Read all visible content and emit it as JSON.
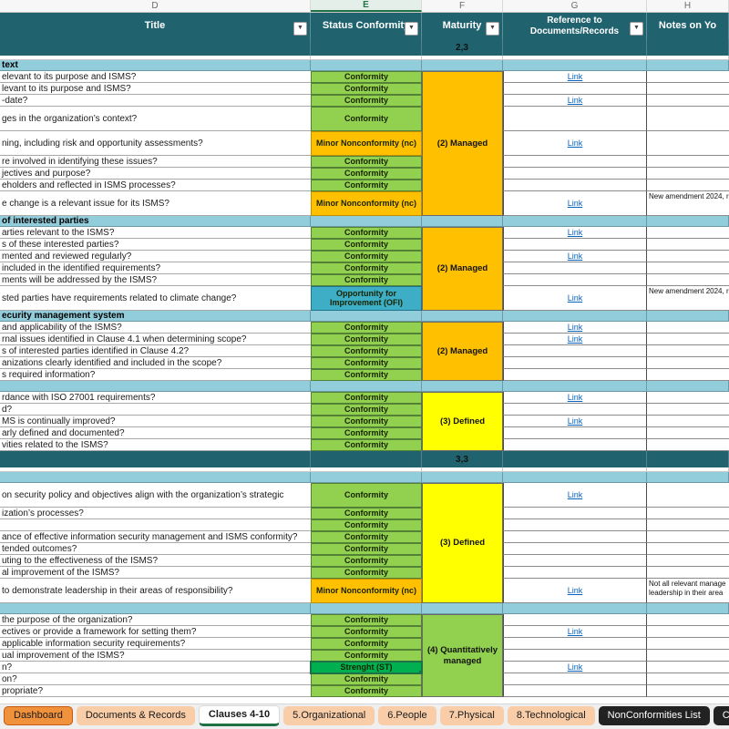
{
  "selected_column": "E",
  "column_letters": [
    "D",
    "E",
    "F",
    "G",
    "H"
  ],
  "headers": {
    "title": "Title",
    "status": "Status Conformity",
    "maturity": "Maturity",
    "reference_line1": "Reference to",
    "reference_line2": "Documents/Records",
    "notes": "Notes on Yo"
  },
  "link_label": "Link",
  "filter_icon": "▼",
  "blocks": [
    {
      "type": "separator",
      "maturity": "2,3"
    },
    {
      "type": "spacer"
    },
    {
      "type": "section",
      "title": "text",
      "maturity": "(2) Managed",
      "maturity_type": "managed",
      "rows": [
        {
          "title": "elevant to its purpose and ISMS?",
          "status": "Conformity",
          "status_type": "conformity",
          "link": true
        },
        {
          "title": "levant to its purpose and ISMS?",
          "status": "Conformity",
          "status_type": "conformity"
        },
        {
          "title": "-date?",
          "status": "Conformity",
          "status_type": "conformity",
          "link": true
        },
        {
          "title": "ges in the organization’s context?",
          "status": "Conformity",
          "status_type": "conformity",
          "tall": true
        },
        {
          "title": "ning, including risk and opportunity assessments?",
          "status": "Minor Nonconformity (nc)",
          "status_type": "minor_nc",
          "tall": true,
          "link": true
        },
        {
          "title": "re involved in identifying these issues?",
          "status": "Conformity",
          "status_type": "conformity"
        },
        {
          "title": "jectives and purpose?",
          "status": "Conformity",
          "status_type": "conformity"
        },
        {
          "title": "eholders and reflected in ISMS processes?",
          "status": "Conformity",
          "status_type": "conformity"
        },
        {
          "title": "e change is a relevant issue for its ISMS?",
          "status": "Minor Nonconformity (nc)",
          "status_type": "minor_nc",
          "tall": true,
          "link": true,
          "note": "New amendment 2024, r"
        }
      ]
    },
    {
      "type": "section",
      "title": "of interested parties",
      "maturity": "(2) Managed",
      "maturity_type": "managed",
      "rows": [
        {
          "title": "arties relevant to the ISMS?",
          "status": "Conformity",
          "status_type": "conformity",
          "link": true
        },
        {
          "title": "s of these interested parties?",
          "status": "Conformity",
          "status_type": "conformity"
        },
        {
          "title": "mented and reviewed regularly?",
          "status": "Conformity",
          "status_type": "conformity",
          "link": true
        },
        {
          "title": "included in the identified requirements?",
          "status": "Conformity",
          "status_type": "conformity"
        },
        {
          "title": "ments will be addressed by the ISMS?",
          "status": "Conformity",
          "status_type": "conformity"
        },
        {
          "title": "sted parties have requirements related to climate change?",
          "status": "Opportunity for Improvement (OFI)",
          "status_type": "ofi",
          "tall": true,
          "link": true,
          "note": "New amendment 2024, r"
        }
      ]
    },
    {
      "type": "section",
      "title": "ecurity management system",
      "maturity": "(2) Managed",
      "maturity_type": "managed",
      "rows": [
        {
          "title": "and applicability of the ISMS?",
          "status": "Conformity",
          "status_type": "conformity",
          "link": true
        },
        {
          "title": "rnal issues identified in Clause 4.1 when determining scope?",
          "status": "Conformity",
          "status_type": "conformity",
          "link": true
        },
        {
          "title": "s of interested parties identified in Clause 4.2?",
          "status": "Conformity",
          "status_type": "conformity"
        },
        {
          "title": "anizations clearly identified and included in the scope?",
          "status": "Conformity",
          "status_type": "conformity"
        },
        {
          "title": "s required information?",
          "status": "Conformity",
          "status_type": "conformity"
        }
      ]
    },
    {
      "type": "section",
      "title": "",
      "maturity": "(3) Defined",
      "maturity_type": "defined",
      "rows": [
        {
          "title": "rdance with ISO 27001 requirements?",
          "status": "Conformity",
          "status_type": "conformity",
          "link": true
        },
        {
          "title": "d?",
          "status": "Conformity",
          "status_type": "conformity"
        },
        {
          "title": "MS is continually improved?",
          "status": "Conformity",
          "status_type": "conformity",
          "link": true
        },
        {
          "title": "arly defined and documented?",
          "status": "Conformity",
          "status_type": "conformity"
        },
        {
          "title": "vities related to the ISMS?",
          "status": "Conformity",
          "status_type": "conformity"
        }
      ]
    },
    {
      "type": "separator",
      "maturity": "3,3"
    },
    {
      "type": "spacer"
    },
    {
      "type": "section",
      "title": "",
      "maturity": "(3) Defined",
      "maturity_type": "defined",
      "rows": [
        {
          "title": "on security policy and objectives align with the organization’s strategic",
          "status": "Conformity",
          "status_type": "conformity",
          "tall": true,
          "link": true
        },
        {
          "title": "ization’s processes?",
          "status": "Conformity",
          "status_type": "conformity"
        },
        {
          "title": "",
          "status": "Conformity",
          "status_type": "conformity"
        },
        {
          "title": "ance of effective information security management and ISMS conformity?",
          "status": "Conformity",
          "status_type": "conformity"
        },
        {
          "title": "tended outcomes?",
          "status": "Conformity",
          "status_type": "conformity"
        },
        {
          "title": "uting to the effectiveness of the ISMS?",
          "status": "Conformity",
          "status_type": "conformity"
        },
        {
          "title": "al improvement of the ISMS?",
          "status": "Conformity",
          "status_type": "conformity"
        },
        {
          "title": "to demonstrate leadership in their areas of responsibility?",
          "status": "Minor Nonconformity (nc)",
          "status_type": "minor_nc",
          "tall": true,
          "link": true,
          "note": "Not all relevant manage\nleadership in their area"
        }
      ]
    },
    {
      "type": "section",
      "title": "",
      "maturity": "(4) Quantitatively managed",
      "maturity_type": "quant",
      "rows": [
        {
          "title": "the purpose of the organization?",
          "status": "Conformity",
          "status_type": "conformity"
        },
        {
          "title": "ectives or provide a framework for setting them?",
          "status": "Conformity",
          "status_type": "conformity",
          "link": true
        },
        {
          "title": "applicable information security requirements?",
          "status": "Conformity",
          "status_type": "conformity"
        },
        {
          "title": "ual improvement of the ISMS?",
          "status": "Conformity",
          "status_type": "conformity"
        },
        {
          "title": "n?",
          "status": "Strenght (ST)",
          "status_type": "strength",
          "selected": true,
          "link": true
        },
        {
          "title": "on?",
          "status": "Conformity",
          "status_type": "conformity"
        },
        {
          "title": "propriate?",
          "status": "Conformity",
          "status_type": "conformity"
        }
      ]
    }
  ],
  "sheet_tabs": [
    {
      "label": "Dashboard",
      "style": "orange"
    },
    {
      "label": "Documents & Records",
      "style": "peach"
    },
    {
      "label": "Clauses 4-10",
      "style": "active"
    },
    {
      "label": "5.Organizational",
      "style": "peach"
    },
    {
      "label": "6.People",
      "style": "peach"
    },
    {
      "label": "7.Physical",
      "style": "peach"
    },
    {
      "label": "8.Technological",
      "style": "peach"
    },
    {
      "label": "NonConformities List",
      "style": "dark"
    },
    {
      "label": "Corrective Measures",
      "style": "dark"
    }
  ],
  "add_sheet_label": "+",
  "colors": {
    "header_teal": "#20636F",
    "section_blue": "#92CDDC",
    "conformity": "#92D050",
    "conformity_border": "#538135",
    "minor_nc": "#FFC000",
    "minor_nc_border": "#BF8F00",
    "ofi": "#3EADC6",
    "ofi_border": "#21748C",
    "strength": "#00B050",
    "strength_border": "#1E7145",
    "maturity_managed": "#FFC000",
    "maturity_defined": "#FFFF00",
    "maturity_quant": "#92D050",
    "link": "#0563C1",
    "tab_orange": "#F0913C",
    "tab_peach": "#F8CDA8",
    "active_green": "#1E7145",
    "letter_selected_green": "#217346"
  }
}
